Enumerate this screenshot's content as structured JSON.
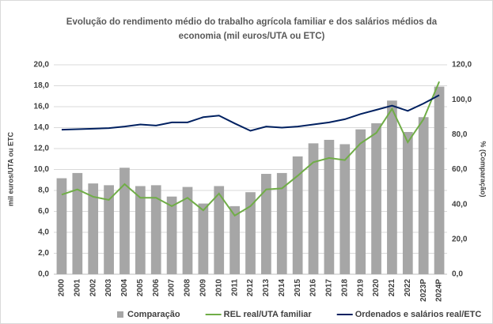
{
  "chart_data": {
    "type": "combo",
    "title": [
      "Evolução do rendimento médio do trabalho agrícola familiar e dos salários médios da",
      "economia (mil euros/UTA ou ETC)"
    ],
    "ylabel": "mil euros/UTA ou ETC",
    "y2label": "% (Comparação)",
    "categories": [
      "2000",
      "2001",
      "2002",
      "2003",
      "2004",
      "2005",
      "2006",
      "2007",
      "2008",
      "2009",
      "2010",
      "2011",
      "2012",
      "2013",
      "2014",
      "2015",
      "2016",
      "2017",
      "2018",
      "2019",
      "2020",
      "2021",
      "2022",
      "2023P",
      "2024P"
    ],
    "series": [
      {
        "name": "Comparação",
        "type": "bar",
        "axis": "y2",
        "color": "#a6a6a6",
        "values": [
          55,
          58,
          52,
          51,
          61,
          50.5,
          51,
          44.5,
          50,
          40.5,
          50.5,
          39,
          47,
          57.5,
          58,
          67.5,
          75,
          77,
          74.5,
          83,
          86.5,
          99.5,
          81.5,
          90,
          107.5
        ]
      },
      {
        "name": "REL real/UTA familiar",
        "type": "line",
        "axis": "y",
        "color": "#70ad47",
        "values": [
          7.6,
          8.1,
          7.4,
          7.1,
          8.6,
          7.3,
          7.3,
          6.5,
          7.3,
          6.1,
          7.7,
          5.6,
          6.5,
          8.1,
          8.2,
          9.4,
          10.7,
          11.1,
          10.9,
          12.5,
          13.5,
          15.8,
          12.6,
          14.8,
          18.4
        ]
      },
      {
        "name": "Ordenados e salários real/ETC",
        "type": "line",
        "axis": "y",
        "color": "#002060",
        "values": [
          13.8,
          13.85,
          13.9,
          13.95,
          14.1,
          14.3,
          14.2,
          14.5,
          14.5,
          15.0,
          15.15,
          14.4,
          13.7,
          14.1,
          14.0,
          14.1,
          14.3,
          14.5,
          14.8,
          15.3,
          15.7,
          16.1,
          15.6,
          16.3,
          17.1
        ]
      }
    ],
    "ylim": [
      0,
      20
    ],
    "yticks": [
      {
        "value": 0,
        "label": "0,0"
      },
      {
        "value": 2,
        "label": "2,0"
      },
      {
        "value": 4,
        "label": "4,0"
      },
      {
        "value": 6,
        "label": "6,0"
      },
      {
        "value": 8,
        "label": "8,0"
      },
      {
        "value": 10,
        "label": "10,0"
      },
      {
        "value": 12,
        "label": "12,0"
      },
      {
        "value": 14,
        "label": "14,0"
      },
      {
        "value": 16,
        "label": "16,0"
      },
      {
        "value": 18,
        "label": "18,0"
      },
      {
        "value": 20,
        "label": "20,0"
      }
    ],
    "y2lim": [
      0,
      120
    ],
    "y2ticks": [
      {
        "value": 0,
        "label": "0,0"
      },
      {
        "value": 20,
        "label": "20,0"
      },
      {
        "value": 40,
        "label": "40,0"
      },
      {
        "value": 60,
        "label": "60,0"
      },
      {
        "value": 80,
        "label": "80,0"
      },
      {
        "value": 100,
        "label": "100,0"
      },
      {
        "value": 120,
        "label": "120,0"
      }
    ],
    "grid": true,
    "legend": "bottom"
  }
}
